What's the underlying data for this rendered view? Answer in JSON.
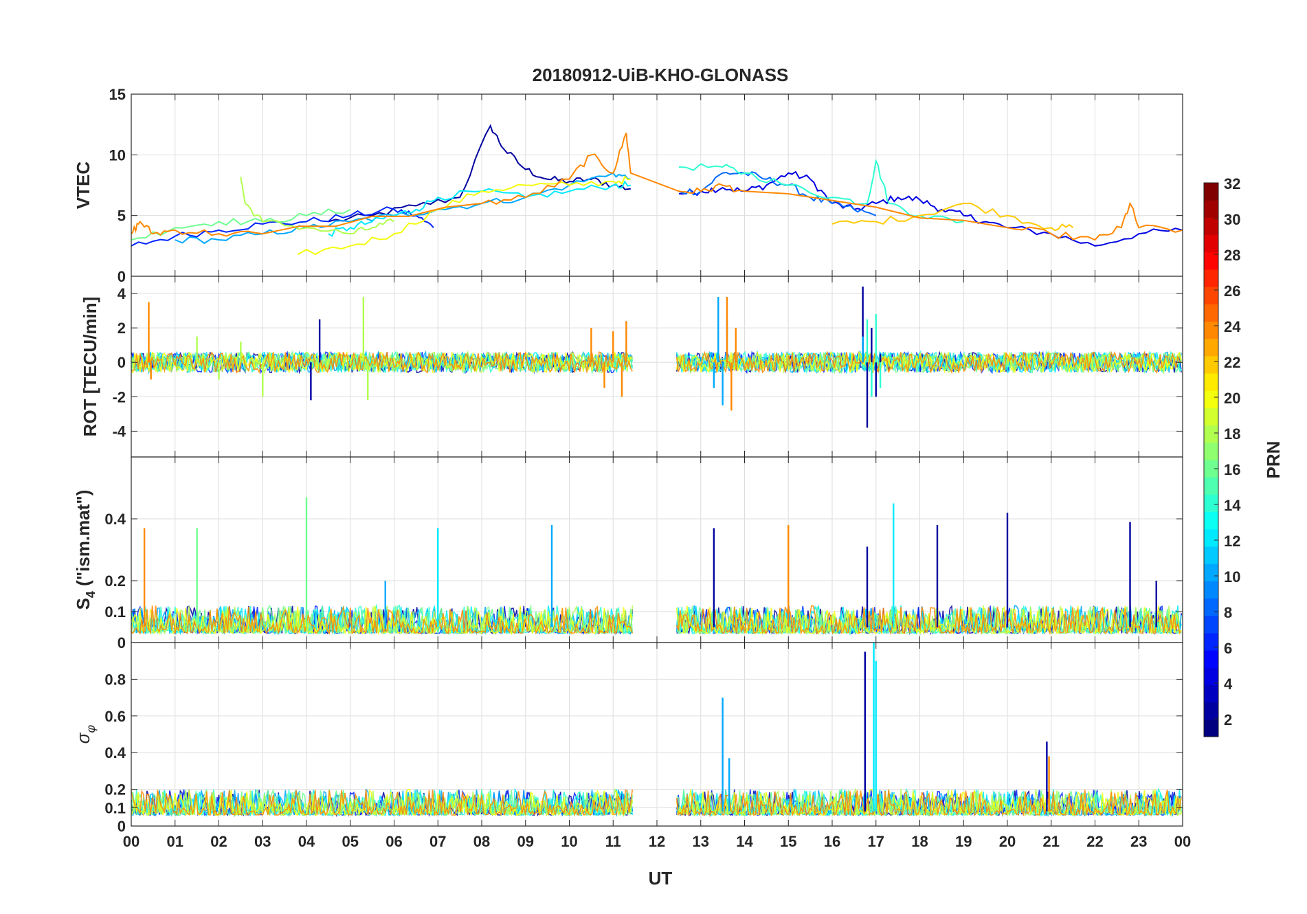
{
  "chart_data": {
    "type": "line",
    "title": "20180912-UiB-KHO-GLONASS",
    "xlabel": "UT",
    "x_unit": "hour",
    "xlim": [
      0,
      24
    ],
    "x_ticks": [
      0,
      1,
      2,
      3,
      4,
      5,
      6,
      7,
      8,
      9,
      10,
      11,
      12,
      13,
      14,
      15,
      16,
      17,
      18,
      19,
      20,
      21,
      22,
      23,
      24
    ],
    "x_tick_labels": [
      "00",
      "01",
      "02",
      "03",
      "04",
      "05",
      "06",
      "07",
      "08",
      "09",
      "10",
      "11",
      "12",
      "13",
      "14",
      "15",
      "16",
      "17",
      "18",
      "19",
      "20",
      "21",
      "22",
      "23",
      "00"
    ],
    "data_gap": [
      11.45,
      12.45
    ],
    "grid": true,
    "colorbar": {
      "label": "PRN",
      "range": [
        1,
        32
      ],
      "ticks": [
        2,
        4,
        6,
        8,
        10,
        12,
        14,
        16,
        18,
        20,
        22,
        24,
        26,
        28,
        30,
        32
      ],
      "colormap": "jet"
    },
    "panels": [
      {
        "id": "vtec",
        "ylabel": "VTEC",
        "ylim": [
          0,
          15
        ],
        "yticks": [
          0,
          5,
          10,
          15
        ],
        "series": [
          {
            "prn": 2,
            "name": "PRN 2",
            "x": [
              4.5,
              5.5,
              6.5,
              7.5,
              8.2,
              8.5,
              9.0,
              9.5,
              10.0,
              10.5,
              11.0,
              11.4
            ],
            "y": [
              4.5,
              5.0,
              5.8,
              6.5,
              12.4,
              10.5,
              8.8,
              8.0,
              7.8,
              8.0,
              7.5,
              7.2
            ]
          },
          {
            "prn": 4,
            "name": "PRN 4",
            "x": [
              12.5,
              13.0,
              13.5,
              14.0,
              14.5,
              15.0,
              15.5,
              16.0,
              16.5,
              17.0,
              17.5,
              18.0,
              18.5,
              19.0,
              19.5,
              20.0,
              21.0,
              22.0,
              23.0,
              24.0
            ],
            "y": [
              6.8,
              7.0,
              7.3,
              7.0,
              7.5,
              8.5,
              8.0,
              6.0,
              5.5,
              6.0,
              6.5,
              6.3,
              5.5,
              5.0,
              4.5,
              4.0,
              3.5,
              2.5,
              3.5,
              3.8
            ]
          },
          {
            "prn": 6,
            "name": "PRN 6",
            "x": [
              0.0,
              1.0,
              2.0,
              3.0,
              4.0,
              5.0,
              6.0,
              6.5,
              6.9
            ],
            "y": [
              2.5,
              3.3,
              3.8,
              4.3,
              4.5,
              5.0,
              5.5,
              5.0,
              4.0
            ]
          },
          {
            "prn": 8,
            "name": "PRN 8",
            "x": [
              12.5,
              13.0,
              13.5,
              14.0,
              14.5,
              15.0,
              15.5,
              16.0,
              16.5,
              17.0
            ],
            "y": [
              7.0,
              7.0,
              8.5,
              8.5,
              8.0,
              7.5,
              6.5,
              6.0,
              5.5,
              5.0
            ]
          },
          {
            "prn": 10,
            "name": "PRN 10",
            "x": [
              1.0,
              2.0,
              3.0,
              4.0,
              5.0,
              6.0,
              7.0,
              8.0,
              9.0,
              10.0,
              11.0,
              11.4
            ],
            "y": [
              3.0,
              3.0,
              3.5,
              4.0,
              4.5,
              5.0,
              5.5,
              6.0,
              6.5,
              7.5,
              8.5,
              8.0
            ]
          },
          {
            "prn": 12,
            "name": "PRN 12",
            "x": [
              4.5,
              5.0,
              5.5,
              6.0,
              6.5,
              7.0,
              8.0,
              9.0,
              10.0,
              11.0,
              11.4
            ],
            "y": [
              3.5,
              4.0,
              4.5,
              5.0,
              5.5,
              6.5,
              7.0,
              6.5,
              7.0,
              7.5,
              7.5
            ]
          },
          {
            "prn": 14,
            "name": "PRN 14",
            "x": [
              12.5,
              13.5,
              14.0,
              15.0,
              16.0,
              16.8,
              17.0,
              17.3,
              18.0,
              19.0
            ],
            "y": [
              9.0,
              9.0,
              8.5,
              7.5,
              6.5,
              6.0,
              9.5,
              6.0,
              5.0,
              4.5
            ]
          },
          {
            "prn": 16,
            "name": "PRN 16",
            "x": [
              0.0,
              1.0,
              2.0,
              3.0,
              4.0,
              5.0
            ],
            "y": [
              3.0,
              4.0,
              4.5,
              4.5,
              5.0,
              5.5
            ]
          },
          {
            "prn": 18,
            "name": "PRN 18",
            "x": [
              2.5,
              2.6,
              3.0,
              4.0,
              5.0,
              5.5,
              6.0
            ],
            "y": [
              8.2,
              6.0,
              4.5,
              4.0,
              3.5,
              4.0,
              4.5
            ]
          },
          {
            "prn": 20,
            "name": "PRN 20",
            "x": [
              3.8,
              5.0,
              6.0,
              7.0,
              8.0,
              9.0,
              10.0,
              11.0,
              11.4
            ],
            "y": [
              1.8,
              2.5,
              3.5,
              5.5,
              7.0,
              7.5,
              7.5,
              7.8,
              8.0
            ]
          },
          {
            "prn": 22,
            "name": "PRN 22",
            "x": [
              16.0,
              17.0,
              18.0,
              19.0,
              20.0,
              21.0,
              21.5
            ],
            "y": [
              4.3,
              4.5,
              5.0,
              6.0,
              5.0,
              4.0,
              4.0
            ]
          },
          {
            "prn": 24,
            "name": "PRN 24",
            "x": [
              0.0,
              0.2,
              0.5,
              1.0,
              2.0,
              3.0,
              8.0,
              9.0,
              10.0,
              10.5,
              11.0,
              11.3,
              11.4,
              12.5,
              13.0,
              13.5,
              14.0,
              20.0,
              21.0,
              22.0,
              22.6,
              22.8,
              23.0,
              24.0
            ],
            "y": [
              3.5,
              4.5,
              3.5,
              3.8,
              3.5,
              3.5,
              6.0,
              6.5,
              8.0,
              10.0,
              8.5,
              11.8,
              8.5,
              7.0,
              7.0,
              7.5,
              7.0,
              4.0,
              3.5,
              3.0,
              4.0,
              6.0,
              4.0,
              3.8
            ]
          }
        ]
      },
      {
        "id": "rot",
        "ylabel": "ROT [TECU/min]",
        "ylim": [
          -5.5,
          5
        ],
        "yticks": [
          -4,
          -2,
          0,
          2,
          4
        ],
        "series": [
          {
            "prn": 2,
            "name": "PRN 2",
            "x": [
              4.1,
              4.3,
              16.6,
              16.7,
              16.8,
              16.9,
              17.0,
              17.1
            ],
            "y": [
              -2.2,
              2.5,
              0.0,
              4.4,
              -3.8,
              2.0,
              -2.0,
              0.5
            ]
          },
          {
            "prn": 10,
            "name": "PRN 10",
            "x": [
              13.3,
              13.4,
              13.5,
              13.6,
              16.7,
              16.9
            ],
            "y": [
              -1.5,
              3.8,
              -2.5,
              2.5,
              1.5,
              -2.0
            ]
          },
          {
            "prn": 14,
            "name": "PRN 14",
            "x": [
              16.8,
              16.9,
              17.0,
              17.1
            ],
            "y": [
              2.5,
              -2.0,
              2.8,
              -1.5
            ]
          },
          {
            "prn": 18,
            "name": "PRN 18",
            "x": [
              1.5,
              2.0,
              2.5,
              3.0,
              5.3,
              5.4
            ],
            "y": [
              1.5,
              -1.0,
              1.2,
              -2.0,
              3.8,
              -2.2
            ]
          },
          {
            "prn": 24,
            "name": "PRN 24",
            "x": [
              0.4,
              0.45,
              10.5,
              10.8,
              11.0,
              11.2,
              11.3,
              13.6,
              13.7,
              13.8
            ],
            "y": [
              3.5,
              -1.0,
              2.0,
              -1.5,
              1.8,
              -2.0,
              2.4,
              3.8,
              -2.8,
              2.0
            ]
          }
        ]
      },
      {
        "id": "s4",
        "ylabel": "S4 (\"ism.mat\")",
        "ylabel_main": "S",
        "ylabel_sub": "4",
        "ylabel_rest": " (\"ism.mat\")",
        "ylim": [
          0,
          0.6
        ],
        "yticks": [
          0,
          0.1,
          0.2,
          0.4
        ],
        "series": [
          {
            "prn": 2,
            "name": "PRN 2",
            "x": [
              13.3,
              16.8,
              18.4,
              20.0,
              22.8,
              23.4
            ],
            "y": [
              0.37,
              0.31,
              0.38,
              0.42,
              0.39,
              0.2
            ]
          },
          {
            "prn": 10,
            "name": "PRN 10",
            "x": [
              5.8,
              9.6
            ],
            "y": [
              0.2,
              0.38
            ]
          },
          {
            "prn": 12,
            "name": "PRN 12",
            "x": [
              7.0,
              17.4
            ],
            "y": [
              0.37,
              0.45
            ]
          },
          {
            "prn": 16,
            "name": "PRN 16",
            "x": [
              1.5,
              4.0
            ],
            "y": [
              0.37,
              0.47
            ]
          },
          {
            "prn": 24,
            "name": "PRN 24",
            "x": [
              0.3,
              15.0
            ],
            "y": [
              0.37,
              0.38
            ]
          }
        ]
      },
      {
        "id": "sigma_phi",
        "ylabel": "σφ",
        "ylabel_main": "σ",
        "ylabel_sub": "φ",
        "ylim": [
          0,
          1
        ],
        "yticks": [
          0,
          0.1,
          0.2,
          0.4,
          0.6,
          0.8
        ],
        "series": [
          {
            "prn": 2,
            "name": "PRN 2",
            "x": [
              16.75,
              20.9
            ],
            "y": [
              0.95,
              0.46
            ]
          },
          {
            "prn": 10,
            "name": "PRN 10",
            "x": [
              13.5,
              13.65
            ],
            "y": [
              0.7,
              0.37
            ]
          },
          {
            "prn": 12,
            "name": "PRN 12",
            "x": [
              16.95,
              17.0
            ],
            "y": [
              1.0,
              0.9
            ]
          },
          {
            "prn": 24,
            "name": "PRN 24",
            "x": [
              20.95
            ],
            "y": [
              0.38
            ]
          }
        ]
      }
    ]
  }
}
